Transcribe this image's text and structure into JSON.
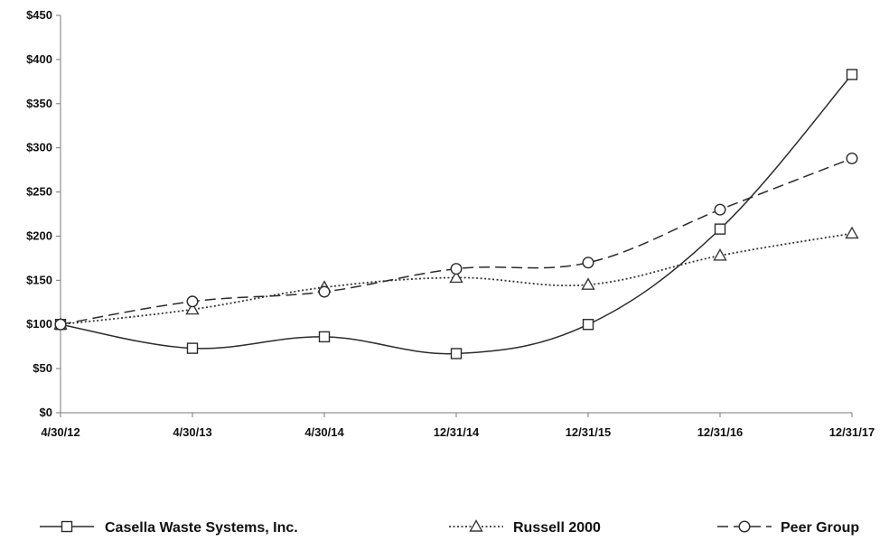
{
  "chart_data": {
    "type": "line",
    "title": "",
    "xlabel": "",
    "ylabel": "",
    "categories": [
      "4/30/12",
      "4/30/13",
      "4/30/14",
      "12/31/14",
      "12/31/15",
      "12/31/16",
      "12/31/17"
    ],
    "ylim": [
      0,
      450
    ],
    "y_ticks": [
      0,
      50,
      100,
      150,
      200,
      250,
      300,
      350,
      400,
      450
    ],
    "y_tick_labels": [
      "$0",
      "$50",
      "$100",
      "$150",
      "$200",
      "$250",
      "$300",
      "$350",
      "$400",
      "$450"
    ],
    "grid": false,
    "legend_position": "bottom",
    "series": [
      {
        "name": "Casella Waste Systems, Inc.",
        "values": [
          100,
          73,
          86,
          67,
          100,
          208,
          383
        ],
        "marker": "square",
        "line_style": "solid",
        "color": "#2b2b2b"
      },
      {
        "name": "Russell 2000",
        "values": [
          100,
          117,
          142,
          153,
          145,
          178,
          203
        ],
        "marker": "triangle",
        "line_style": "dotted",
        "color": "#3a3a3a"
      },
      {
        "name": "Peer Group",
        "values": [
          100,
          126,
          137,
          163,
          170,
          230,
          288
        ],
        "marker": "circle",
        "line_style": "dashed",
        "color": "#2b2b2b"
      }
    ]
  }
}
